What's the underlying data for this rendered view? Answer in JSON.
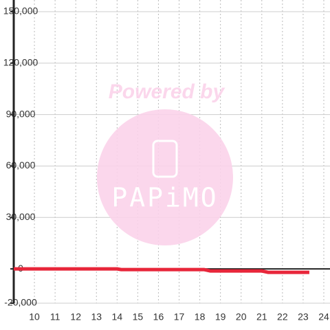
{
  "chart_data": {
    "type": "line",
    "watermark": {
      "top": "Powered by",
      "logo": "PAPiMO"
    },
    "x": [
      9,
      14,
      14.2,
      18.2,
      18.5,
      21,
      21.3,
      23.3
    ],
    "series": [
      {
        "color": "#e8263a",
        "values": [
          0,
          0,
          -400,
          -400,
          -1200,
          -1200,
          -2000,
          -2000
        ]
      }
    ],
    "xlim": [
      9,
      24.3
    ],
    "xticks": [
      10,
      11,
      12,
      13,
      14,
      15,
      16,
      17,
      18,
      19,
      20,
      21,
      22,
      23,
      24
    ],
    "ylim": [
      -20000,
      150000
    ],
    "yticks": [
      {
        "value": -20000,
        "label": "-20,000"
      },
      {
        "value": 0,
        "label": "0"
      },
      {
        "value": 30000,
        "label": "30,000"
      },
      {
        "value": 60000,
        "label": "60,000"
      },
      {
        "value": 90000,
        "label": "90,000"
      },
      {
        "value": 120000,
        "label": "120,000"
      },
      {
        "value": 150000,
        "label": "150,000"
      }
    ],
    "grid": true
  }
}
